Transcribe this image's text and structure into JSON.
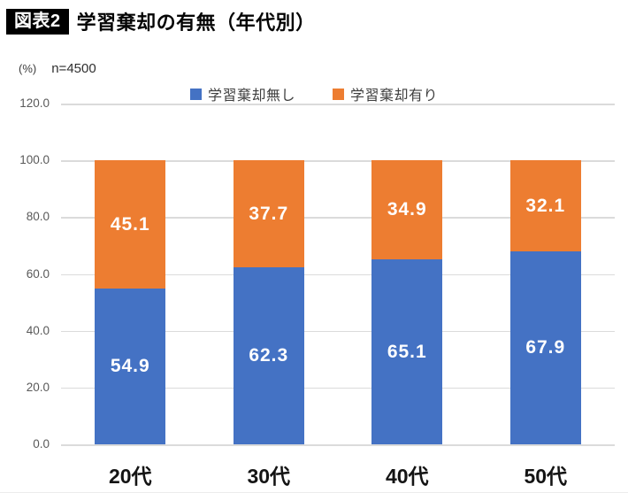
{
  "header": {
    "badge": "図表2",
    "title": "学習棄却の有無（年代別）"
  },
  "meta": {
    "unit": "(%)",
    "sample": "n=4500"
  },
  "chart_data": {
    "type": "bar",
    "stacked": true,
    "title": "学習棄却の有無（年代別）",
    "subtitle": "n=4500",
    "categories": [
      "20代",
      "30代",
      "40代",
      "50代"
    ],
    "series": [
      {
        "name": "学習棄却無し",
        "color": "#4472C4",
        "values": [
          54.9,
          62.3,
          65.1,
          67.9
        ]
      },
      {
        "name": "学習棄却有り",
        "color": "#ED7D31",
        "values": [
          45.1,
          37.7,
          34.9,
          32.1
        ]
      }
    ],
    "xlabel": "",
    "ylabel": "(%)",
    "ylim": [
      0,
      120
    ],
    "yticks": [
      "0.0",
      "20.0",
      "40.0",
      "60.0",
      "80.0",
      "100.0",
      "120.0"
    ],
    "grid": true,
    "legend_position": "top",
    "value_labels": true,
    "value_label_color": "#FFFFFF"
  }
}
